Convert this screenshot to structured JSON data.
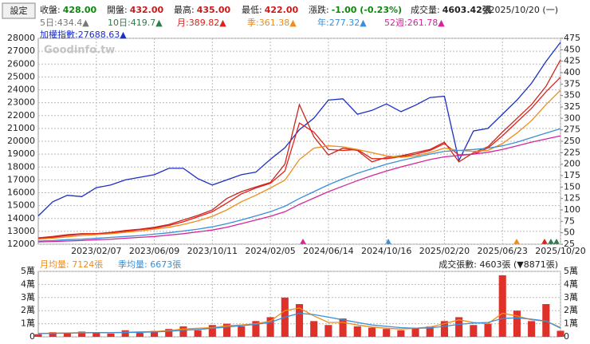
{
  "header": {
    "button": "設定",
    "quotes": [
      {
        "label": "收盤:",
        "value": "428.00",
        "color": "#0a8a0a"
      },
      {
        "label": "開盤:",
        "value": "432.00",
        "color": "#d01818"
      },
      {
        "label": "最高:",
        "value": "435.00",
        "color": "#d01818"
      },
      {
        "label": "最低:",
        "value": "422.00",
        "color": "#d01818"
      },
      {
        "label": "漲跌:",
        "value": "-1.00 (-0.23%)",
        "color": "#0a8a0a"
      },
      {
        "label": "成交量:",
        "value": "4603.42張",
        "color": "#222222"
      }
    ],
    "date": "2025/10/20 (一)",
    "ma_short": [
      {
        "text": "5日:434.4▲",
        "color": "#777777"
      },
      {
        "text": "10日:419.7▲",
        "color": "#2e7d4a"
      }
    ]
  },
  "chart_data": [
    {
      "type": "line",
      "watermark": "Goodinfo.tw",
      "categories": [
        null,
        null,
        null,
        null,
        "2023/02/07",
        null,
        null,
        null,
        "2023/06/09",
        null,
        null,
        null,
        "2023/10/11",
        null,
        null,
        null,
        "2024/02/05",
        null,
        null,
        null,
        "2024/06/14",
        null,
        null,
        null,
        "2024/10/16",
        null,
        null,
        null,
        "2025/02/20",
        null,
        null,
        null,
        "2025/06/23",
        null,
        null,
        null,
        "2025/10/20"
      ],
      "series": [
        {
          "name": "加權指數:27688.63▲",
          "color": "#1c2fc4",
          "axis": "y",
          "values": [
            14200,
            15300,
            15800,
            15700,
            16400,
            16600,
            17000,
            17200,
            17400,
            17900,
            17900,
            17100,
            16600,
            17000,
            17400,
            17600,
            18600,
            19500,
            20900,
            21800,
            23200,
            23300,
            22100,
            22400,
            22900,
            22300,
            22800,
            23400,
            23500,
            18500,
            20800,
            21000,
            22100,
            23200,
            24500,
            26200,
            27688.63
          ]
        },
        {
          "color": "#c8281e",
          "axis": "y2",
          "values": [
            39,
            42,
            46,
            48,
            48,
            51,
            55,
            58,
            62,
            68,
            78,
            88,
            100,
            125,
            140,
            150,
            160,
            200,
            330,
            260,
            220,
            235,
            230,
            205,
            215,
            218,
            225,
            232,
            248,
            205,
            225,
            238,
            270,
            300,
            330,
            370,
            428
          ]
        },
        {
          "name": "月:389.82▲",
          "color": "#e0201a",
          "axis": "y2",
          "values": [
            38,
            40,
            44,
            47,
            48,
            50,
            53,
            57,
            60,
            66,
            74,
            85,
            96,
            115,
            135,
            148,
            158,
            185,
            290,
            270,
            232,
            230,
            232,
            212,
            212,
            216,
            222,
            230,
            245,
            220,
            222,
            235,
            262,
            292,
            322,
            358,
            389.82
          ]
        },
        {
          "name": "季:361.38▲",
          "color": "#f08c1a",
          "axis": "y2",
          "values": [
            36,
            38,
            41,
            44,
            46,
            48,
            51,
            54,
            58,
            62,
            68,
            76,
            86,
            100,
            118,
            132,
            148,
            165,
            210,
            235,
            240,
            238,
            232,
            225,
            218,
            215,
            218,
            225,
            235,
            230,
            228,
            230,
            245,
            268,
            295,
            330,
            361.38
          ]
        },
        {
          "name": "年:277.32▲",
          "color": "#3a8fd8",
          "axis": "y2",
          "values": [
            32,
            33,
            35,
            36,
            38,
            40,
            42,
            44,
            47,
            50,
            54,
            58,
            63,
            70,
            78,
            87,
            96,
            108,
            125,
            140,
            155,
            168,
            180,
            190,
            200,
            208,
            215,
            222,
            228,
            230,
            232,
            235,
            240,
            248,
            258,
            268,
            277.32
          ]
        },
        {
          "name": "52週:261.78▲",
          "color": "#d6259a",
          "axis": "y2",
          "values": [
            30,
            31,
            32,
            33,
            35,
            36,
            38,
            40,
            42,
            45,
            48,
            52,
            56,
            62,
            70,
            78,
            86,
            96,
            112,
            126,
            140,
            152,
            164,
            175,
            185,
            194,
            202,
            210,
            216,
            219,
            222,
            226,
            232,
            240,
            248,
            255,
            261.78
          ]
        }
      ],
      "ylim": [
        12000,
        28000
      ],
      "yticks": [
        12000,
        13000,
        14000,
        15000,
        16000,
        17000,
        18000,
        19000,
        20000,
        21000,
        22000,
        23000,
        24000,
        25000,
        26000,
        27000,
        28000
      ],
      "y2lim": [
        25,
        475
      ],
      "y2ticks": [
        25,
        50,
        75,
        100,
        125,
        150,
        175,
        200,
        225,
        250,
        275,
        300,
        325,
        350,
        375,
        400,
        425,
        450,
        475
      ],
      "grid": true
    },
    {
      "type": "bar",
      "title": "成交張數: 4603張 (▼8871張)",
      "values": [
        2000,
        3500,
        2500,
        4000,
        3000,
        2500,
        5000,
        3000,
        4500,
        6000,
        8000,
        5000,
        9000,
        10000,
        8000,
        12000,
        15000,
        30000,
        25000,
        12000,
        9000,
        14000,
        8000,
        7000,
        6000,
        5000,
        7000,
        8000,
        12000,
        15000,
        9000,
        10000,
        47000,
        20000,
        12000,
        25000,
        4603
      ],
      "color": "#e0302a",
      "series": [
        {
          "name": "月均量: 7124張",
          "color": "#f08c1a",
          "values": [
            2500,
            2800,
            3000,
            3200,
            3300,
            3200,
            3500,
            3800,
            4000,
            4800,
            6000,
            6500,
            7000,
            8500,
            9000,
            10000,
            12000,
            20000,
            22000,
            16000,
            11000,
            11000,
            9000,
            7500,
            6500,
            6000,
            6500,
            7500,
            10000,
            13000,
            11000,
            10000,
            18000,
            16000,
            13000,
            12000,
            7124
          ]
        },
        {
          "name": "季均量: 6673張",
          "color": "#3a8fd8",
          "values": [
            2500,
            2600,
            2800,
            3000,
            3100,
            3200,
            3300,
            3500,
            3700,
            4200,
            5000,
            5600,
            6500,
            7500,
            8500,
            9500,
            11000,
            15000,
            18000,
            17000,
            15000,
            13000,
            11000,
            9000,
            8000,
            7000,
            6500,
            6800,
            8000,
            9500,
            10500,
            11000,
            14000,
            14500,
            13500,
            12000,
            6673
          ]
        }
      ],
      "ylim": [
        0,
        50000
      ],
      "yticks": [
        0,
        {
          "value": 10000,
          "label": "1萬"
        },
        {
          "value": 20000,
          "label": "2萬"
        },
        {
          "value": 30000,
          "label": "3萬"
        },
        {
          "value": 40000,
          "label": "4萬"
        },
        {
          "value": 50000,
          "label": "5萬"
        }
      ],
      "grid": true
    }
  ]
}
